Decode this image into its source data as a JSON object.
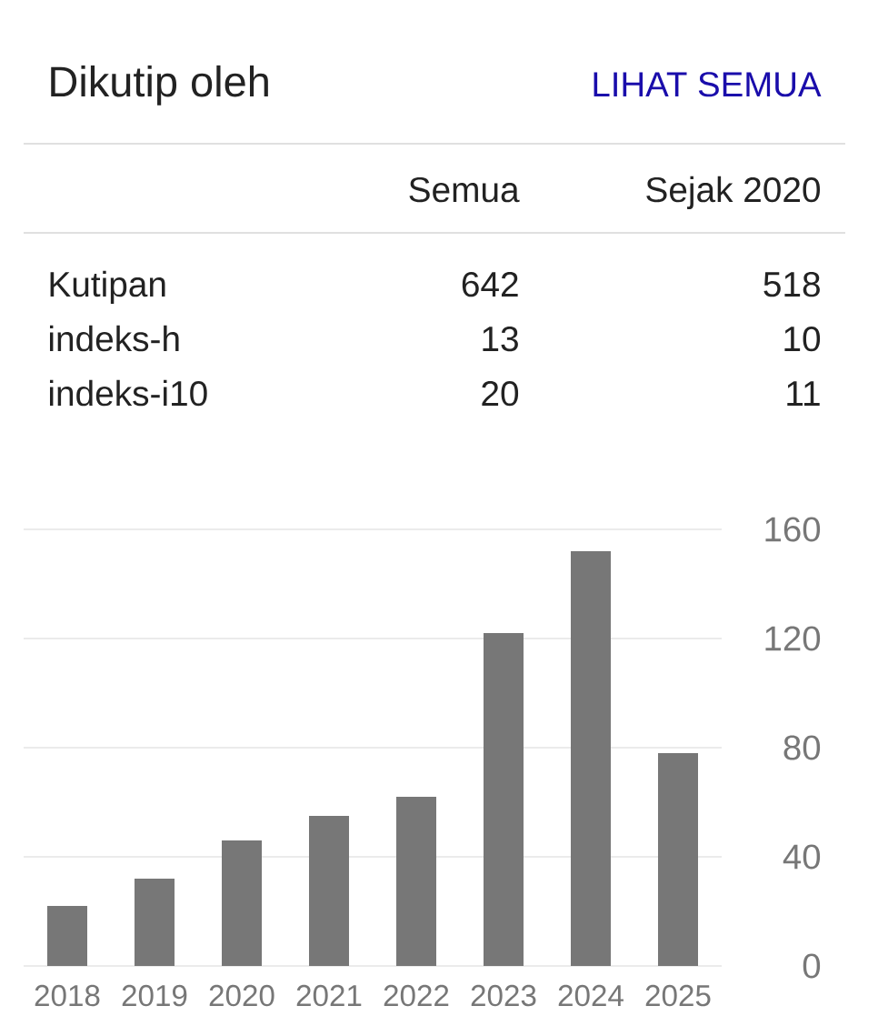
{
  "chart_data": [
    {
      "type": "other",
      "title": "Dikutip oleh",
      "annotations": [
        "LIHAT SEMUA"
      ],
      "categories": [
        "Kutipan",
        "indeks-h",
        "indeks-i10"
      ],
      "series": [
        {
          "name": "Semua",
          "values": [
            642,
            13,
            20
          ]
        },
        {
          "name": "Sejak 2020",
          "values": [
            518,
            10,
            11
          ]
        }
      ],
      "data_labels": true
    },
    {
      "type": "bar",
      "categories": [
        "2018",
        "2019",
        "2020",
        "2021",
        "2022",
        "2023",
        "2024",
        "2025"
      ],
      "values": [
        22,
        32,
        46,
        55,
        62,
        122,
        152,
        78
      ],
      "color": "#777777",
      "ylim": [
        0,
        160
      ],
      "yticks": [
        0,
        40,
        80,
        120,
        160
      ],
      "grid": "y"
    }
  ]
}
